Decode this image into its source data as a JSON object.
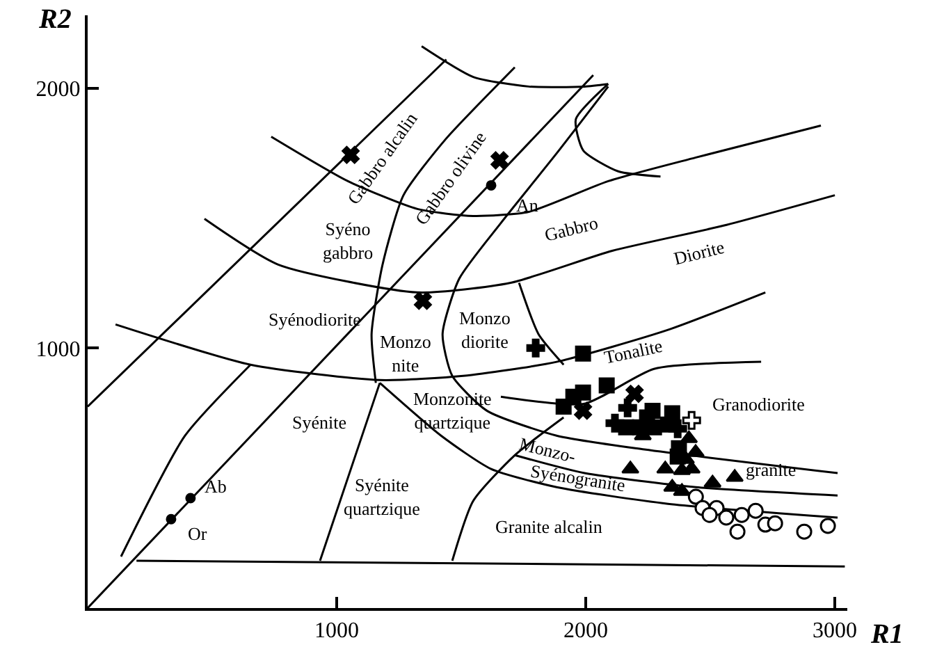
{
  "chart_data": {
    "type": "scatter",
    "xlabel": "R1",
    "ylabel": "R2",
    "xlim": [
      0,
      3050
    ],
    "ylim": [
      0,
      2280
    ],
    "xticks": [
      1000,
      2000,
      3000
    ],
    "yticks": [
      1000,
      2000
    ],
    "grid": false,
    "series": [
      {
        "type": "line",
        "color": "#000000",
        "marker": "none",
        "x": [
          0,
          2030
        ],
        "values": [
          0,
          2050
        ]
      },
      {
        "type": "line",
        "color": "#000000",
        "marker": "none",
        "x": [
          0,
          1440
        ],
        "values": [
          775,
          2110
        ]
      },
      {
        "type": "line",
        "color": "#000000",
        "marker": "none",
        "x": [
          1341,
          1548,
          1771,
          1995,
          2090
        ],
        "values": [
          2161,
          2043,
          2006,
          2006,
          2016
        ]
      },
      {
        "type": "line",
        "color": "#000000",
        "marker": "none",
        "x": [
          1715,
          1436,
          1268,
          1184,
          1140,
          1157
        ],
        "values": [
          2080,
          1802,
          1588,
          1321,
          1054,
          866
        ]
      },
      {
        "type": "line",
        "color": "#000000",
        "marker": "none",
        "x": [
          737,
          1045,
          1324,
          1548,
          1771,
          2090,
          2442,
          2944
        ],
        "values": [
          1813,
          1642,
          1535,
          1508,
          1524,
          1642,
          1733,
          1856
        ]
      },
      {
        "type": "line",
        "color": "#000000",
        "marker": "none",
        "x": [
          469,
          765,
          1324,
          1698,
          2106,
          2553,
          3000
        ],
        "values": [
          1497,
          1321,
          1214,
          1251,
          1374,
          1471,
          1588
        ]
      },
      {
        "type": "line",
        "color": "#000000",
        "marker": "none",
        "x": [
          112,
          654,
          1173,
          1508,
          1883,
          2330,
          2721
        ],
        "values": [
          1091,
          936,
          877,
          893,
          947,
          1070,
          1214
        ]
      },
      {
        "type": "line",
        "color": "#000000",
        "marker": "none",
        "x": [
          134,
          391,
          654
        ],
        "values": [
          198,
          663,
          936
        ]
      },
      {
        "type": "line",
        "color": "#000000",
        "marker": "none",
        "x": [
          196,
          3040
        ],
        "values": [
          182,
          160
        ]
      },
      {
        "type": "line",
        "color": "#000000",
        "marker": "none",
        "x": [
          933,
          1173
        ],
        "values": [
          182,
          866
        ]
      },
      {
        "type": "line",
        "color": "#000000",
        "marker": "none",
        "x": [
          1173,
          1419,
          1620,
          1883,
          2330,
          3011
        ],
        "values": [
          866,
          663,
          535,
          465,
          401,
          348
        ]
      },
      {
        "type": "line",
        "color": "#000000",
        "marker": "none",
        "x": [
          1464,
          1548,
          1715,
          1911
        ],
        "values": [
          182,
          412,
          588,
          733
        ]
      },
      {
        "type": "line",
        "color": "#000000",
        "marker": "none",
        "x": [
          1715,
          1995,
          2442,
          3011
        ],
        "values": [
          588,
          519,
          465,
          433
        ]
      },
      {
        "type": "line",
        "color": "#000000",
        "marker": "none",
        "x": [
          2090,
          1883,
          1659,
          1492,
          1425,
          1464,
          1603,
          1883,
          2235,
          3011
        ],
        "values": [
          2006,
          1749,
          1481,
          1267,
          1054,
          893,
          759,
          663,
          610,
          519
        ]
      },
      {
        "type": "line",
        "color": "#000000",
        "marker": "none",
        "x": [
          2090,
          1960,
          1990,
          2130,
          2300
        ],
        "values": [
          2016,
          1880,
          1760,
          1680,
          1660
        ]
      },
      {
        "type": "line",
        "color": "#000000",
        "marker": "none",
        "x": [
          1732,
          1810,
          1911
        ],
        "values": [
          1251,
          1054,
          936
        ]
      },
      {
        "type": "line",
        "color": "#000000",
        "marker": "none",
        "x": [
          1659,
          1995,
          2274,
          2704
        ],
        "values": [
          813,
          786,
          920,
          947
        ]
      },
      {
        "color": "#000000",
        "marker": "square",
        "x": [
          1989,
          2084,
          1989,
          1950,
          1911,
          2268,
          2347,
          2162,
          2218,
          2274,
          2330,
          2246,
          2374,
          2369
        ],
        "values": [
          979,
          856,
          829,
          813,
          775,
          759,
          749,
          695,
          695,
          695,
          706,
          733,
          615,
          583
        ]
      },
      {
        "color": "#000000",
        "marker": "triangle",
        "x": [
          2229,
          2414,
          2441,
          2179,
          2319,
          2386,
          2425,
          2347,
          2386,
          2509,
          2598,
          2402
        ],
        "values": [
          663,
          652,
          599,
          535,
          535,
          529,
          535,
          465,
          449,
          481,
          503,
          572
        ]
      },
      {
        "color": "#ffffff",
        "marker": "circle",
        "x": [
          2442,
          2469,
          2525,
          2497,
          2564,
          2626,
          2682,
          2609,
          2721,
          2760,
          2877,
          2972
        ],
        "values": [
          428,
          385,
          385,
          358,
          348,
          358,
          374,
          294,
          321,
          326,
          294,
          316
        ]
      },
      {
        "color": "#000000",
        "marker": "cross",
        "x": [
          1056,
          1654,
          1346,
          2196,
          1989
        ],
        "values": [
          1743,
          1722,
          1182,
          824,
          759
        ]
      },
      {
        "color": "#000000",
        "marker": "plus",
        "x": [
          1799,
          2117,
          2168,
          2369
        ],
        "values": [
          1000,
          711,
          770,
          690
        ]
      },
      {
        "color": "#ffffff",
        "marker": "plus",
        "x": [
          2425
        ],
        "values": [
          722
        ]
      },
      {
        "color": "#000000",
        "marker": "dot",
        "x": [
          335,
          413,
          1620
        ],
        "values": [
          342,
          423,
          1626
        ]
      }
    ],
    "annotations": [
      "Gabbro alcalin",
      "Gabbro olivine",
      "Syéno\ngabbro",
      "Gabbro",
      "Diorite",
      "Syénodiorite",
      "Monzo\nnite",
      "Monzo\ndiorite",
      "Tonalite",
      "Granodiorite",
      "Monzonite\nquartzique",
      "Monzo-",
      "Syénogranite",
      "granite",
      "Syénite",
      "Syénite\nquartzique",
      "Granite alcalin",
      {
        "text": "Ab",
        "x": 413,
        "y": 423
      },
      {
        "text": "Or",
        "x": 335,
        "y": 342
      },
      {
        "text": "An",
        "x": 1620,
        "y": 1626
      }
    ]
  }
}
